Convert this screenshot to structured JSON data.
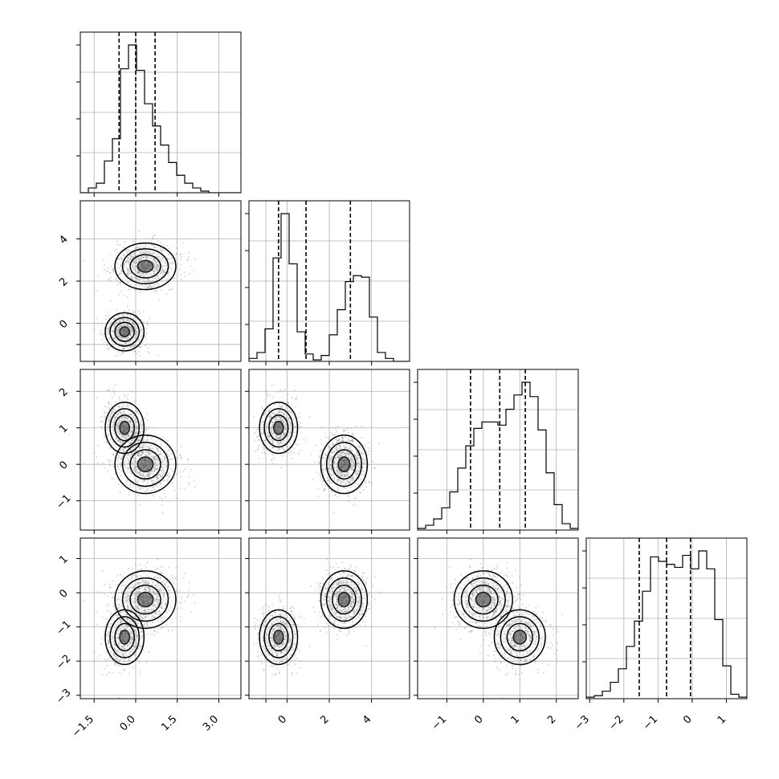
{
  "chart_data": {
    "type": "corner",
    "grid": true,
    "params": [
      {
        "range": [
          -2.0,
          3.8
        ],
        "ticks": [
          -1.5,
          0.0,
          1.5,
          3.0
        ],
        "tick_labels": [
          "−1.5",
          "0.0",
          "1.5",
          "3.0"
        ],
        "quantiles": [
          -0.6,
          0.0,
          0.7
        ],
        "hist_bins": {
          "start": -2.0,
          "width": 0.29,
          "counts": [
            0,
            3,
            6,
            20,
            34,
            78,
            93,
            77,
            56,
            42,
            30,
            19,
            11,
            6,
            3,
            1,
            0,
            0,
            0,
            0
          ]
        }
      },
      {
        "range": [
          -1.8,
          5.8
        ],
        "ticks": [
          -1,
          0,
          2,
          4
        ],
        "tick_labels": [
          "",
          "0",
          "2",
          "4"
        ],
        "quantiles": [
          -0.4,
          0.9,
          3.0
        ],
        "hist_bins": {
          "start": -1.8,
          "width": 0.38,
          "counts": [
            2,
            6,
            22,
            70,
            100,
            66,
            20,
            5,
            1,
            4,
            18,
            35,
            54,
            58,
            57,
            30,
            6,
            2,
            0,
            0
          ]
        }
      },
      {
        "range": [
          -1.8,
          2.6
        ],
        "ticks": [
          -1,
          0,
          1,
          2
        ],
        "tick_labels": [
          "−1",
          "0",
          "1",
          "2"
        ],
        "quantiles": [
          -0.35,
          0.45,
          1.15
        ],
        "hist_bins": {
          "start": -1.8,
          "width": 0.22,
          "counts": [
            1,
            3,
            7,
            14,
            24,
            39,
            53,
            64,
            68,
            68,
            66,
            76,
            85,
            93,
            84,
            63,
            36,
            16,
            4,
            1
          ]
        }
      },
      {
        "range": [
          -3.1,
          1.6
        ],
        "ticks": [
          -3,
          -2,
          -1,
          0,
          1
        ],
        "tick_labels": [
          "−3",
          "−2",
          "−1",
          "0",
          "1"
        ],
        "quantiles": [
          -1.55,
          -0.75,
          -0.05
        ],
        "hist_bins": {
          "start": -3.1,
          "width": 0.235,
          "counts": [
            1,
            2,
            5,
            11,
            20,
            35,
            52,
            72,
            95,
            92,
            90,
            88,
            96,
            87,
            99,
            87,
            53,
            22,
            3,
            1
          ]
        }
      }
    ],
    "clusters": [
      {
        "center": [
          -0.4,
          -0.4,
          1.0,
          -1.3
        ],
        "weight": 0.45
      },
      {
        "center": [
          0.35,
          2.7,
          0.0,
          -0.2
        ],
        "weight": 0.55
      }
    ],
    "y_labels_visible": {
      "1": [
        "",
        "0",
        "2",
        "4"
      ],
      "2": [
        "−1",
        "0",
        "1",
        "2"
      ],
      "3": [
        "−3",
        "−2",
        "−1",
        "0",
        "1"
      ]
    }
  }
}
